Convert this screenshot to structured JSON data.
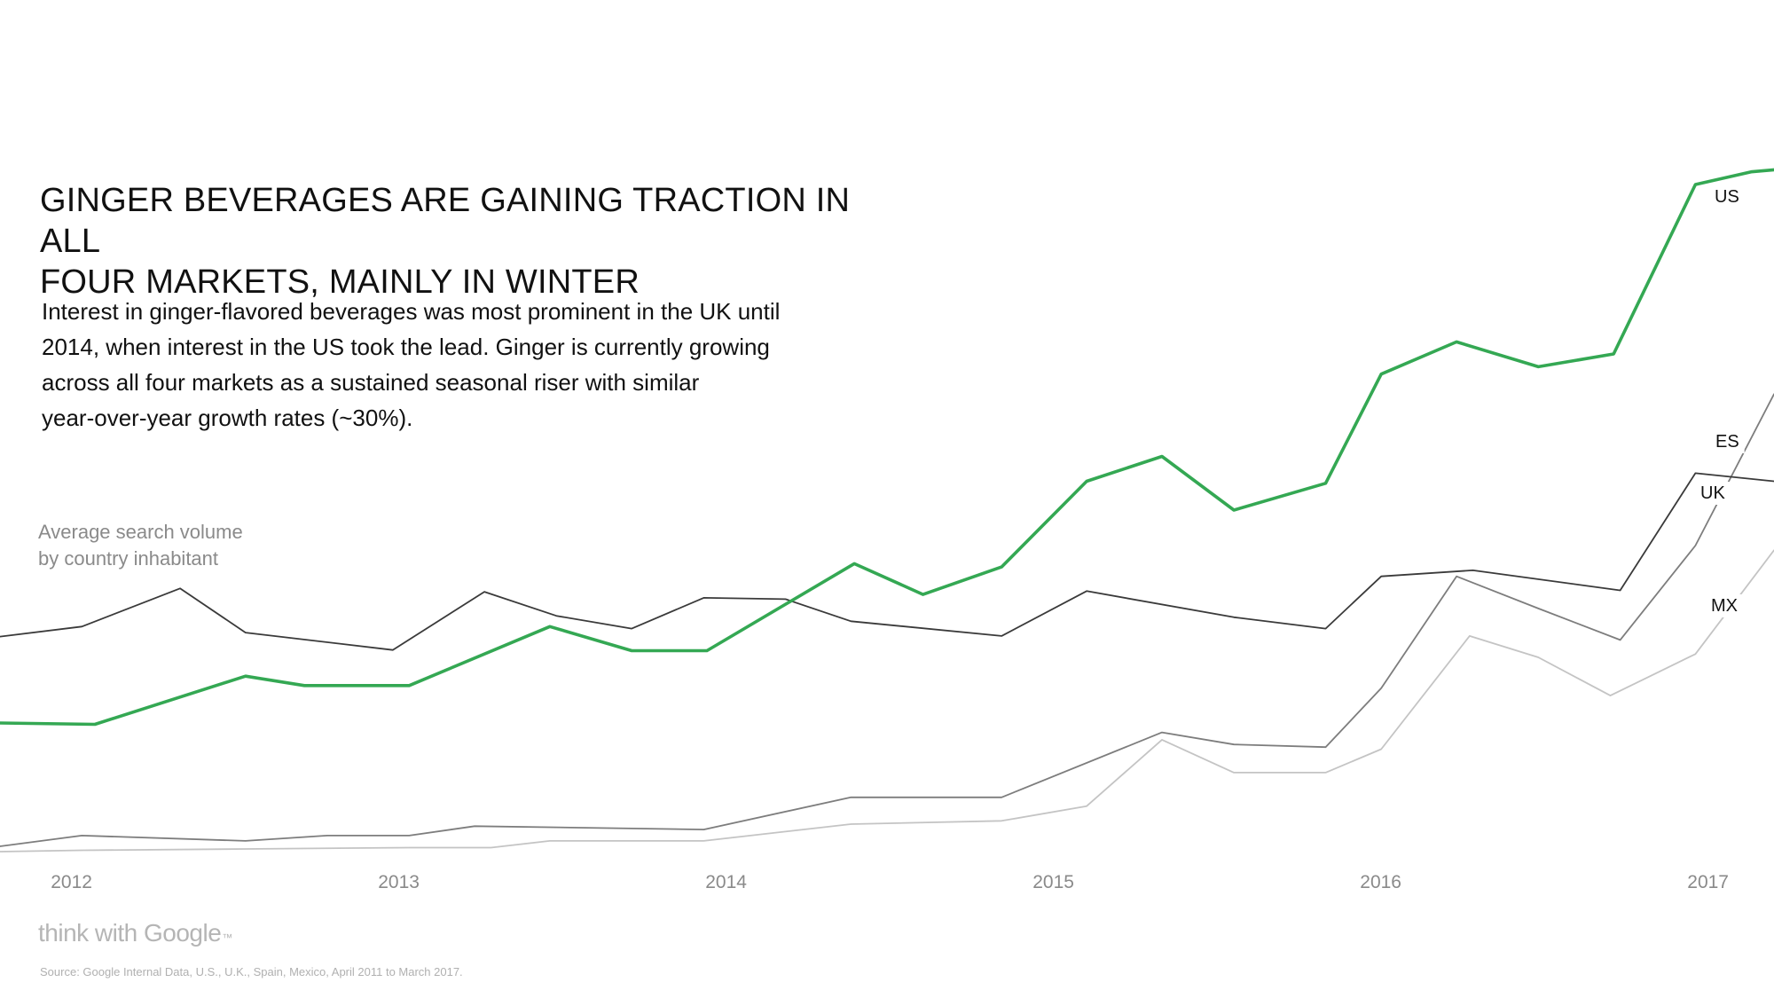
{
  "title": "GINGER BEVERAGES ARE GAINING TRACTION IN ALL\nFOUR MARKETS, MAINLY IN WINTER",
  "description": "Interest in ginger-flavored beverages was most prominent in the UK until\n2014, when interest in the US took the lead. Ginger is currently growing\nacross all four markets as a sustained seasonal riser with similar\nyear-over-year growth rates (~30%).",
  "yaxis_label": "Average search volume\nby country inhabitant",
  "brand": {
    "text": "think with Google",
    "mark": "™"
  },
  "source": "Source: Google Internal Data, U.S., U.K., Spain, Mexico, April 2011 to March 2017.",
  "colors": {
    "us": "#34a853",
    "uk": "#3a3a3a",
    "es": "#7d7d7d",
    "mx": "#c4c4c4",
    "tick": "#8a8a8a"
  },
  "chart_data": {
    "type": "line",
    "title": "GINGER BEVERAGES ARE GAINING TRACTION IN ALL FOUR MARKETS, MAINLY IN WINTER",
    "xlabel": "",
    "ylabel": "Average search volume by country inhabitant",
    "xlim": [
      2011.75,
      2017.17
    ],
    "ylim": [
      0,
      100
    ],
    "x_ticks": [
      2012,
      2013,
      2014,
      2015,
      2016,
      2017
    ],
    "x_tick_labels": [
      "2012",
      "2013",
      "2014",
      "2015",
      "2016",
      "2017"
    ],
    "grid": false,
    "legend": "inline labels at right end",
    "series": [
      {
        "name": "US",
        "color": "#34a853",
        "points": [
          [
            2011.75,
            19.2
          ],
          [
            2012.04,
            19.0
          ],
          [
            2012.5,
            26.2
          ],
          [
            2012.68,
            24.8
          ],
          [
            2013.0,
            24.8
          ],
          [
            2013.43,
            33.6
          ],
          [
            2013.68,
            30.0
          ],
          [
            2013.91,
            30.0
          ],
          [
            2014.36,
            43.0
          ],
          [
            2014.57,
            38.4
          ],
          [
            2014.81,
            42.5
          ],
          [
            2015.07,
            55.3
          ],
          [
            2015.3,
            59.0
          ],
          [
            2015.52,
            51.0
          ],
          [
            2015.8,
            55.0
          ],
          [
            2015.97,
            71.3
          ],
          [
            2016.2,
            76.1
          ],
          [
            2016.45,
            72.4
          ],
          [
            2016.68,
            74.3
          ],
          [
            2016.93,
            99.6
          ],
          [
            2017.1,
            101.5
          ],
          [
            2017.17,
            101.8
          ]
        ]
      },
      {
        "name": "ES",
        "color": "#7d7d7d",
        "points": [
          [
            2011.75,
            0.8
          ],
          [
            2012.0,
            2.4
          ],
          [
            2012.5,
            1.6
          ],
          [
            2012.75,
            2.4
          ],
          [
            2013.0,
            2.4
          ],
          [
            2013.2,
            3.8
          ],
          [
            2013.9,
            3.3
          ],
          [
            2014.35,
            8.1
          ],
          [
            2014.81,
            8.1
          ],
          [
            2015.3,
            17.8
          ],
          [
            2015.52,
            16.0
          ],
          [
            2015.8,
            15.6
          ],
          [
            2015.97,
            24.4
          ],
          [
            2016.2,
            41.1
          ],
          [
            2016.45,
            36.3
          ],
          [
            2016.7,
            31.6
          ],
          [
            2016.93,
            45.7
          ],
          [
            2017.17,
            68.3
          ]
        ]
      },
      {
        "name": "UK",
        "color": "#3a3a3a",
        "points": [
          [
            2011.75,
            32.1
          ],
          [
            2012.0,
            33.6
          ],
          [
            2012.3,
            39.3
          ],
          [
            2012.5,
            32.7
          ],
          [
            2012.95,
            30.1
          ],
          [
            2013.23,
            38.8
          ],
          [
            2013.45,
            35.2
          ],
          [
            2013.68,
            33.3
          ],
          [
            2013.9,
            37.9
          ],
          [
            2014.15,
            37.7
          ],
          [
            2014.35,
            34.4
          ],
          [
            2014.81,
            32.2
          ],
          [
            2015.07,
            38.9
          ],
          [
            2015.52,
            35.0
          ],
          [
            2015.8,
            33.3
          ],
          [
            2015.97,
            41.1
          ],
          [
            2016.25,
            42.0
          ],
          [
            2016.7,
            39.0
          ],
          [
            2016.93,
            56.5
          ],
          [
            2017.17,
            55.3
          ]
        ]
      },
      {
        "name": "MX",
        "color": "#c4c4c4",
        "points": [
          [
            2011.75,
            0.0
          ],
          [
            2012.0,
            0.2
          ],
          [
            2012.5,
            0.4
          ],
          [
            2013.0,
            0.6
          ],
          [
            2013.25,
            0.6
          ],
          [
            2013.43,
            1.6
          ],
          [
            2013.9,
            1.6
          ],
          [
            2014.35,
            4.1
          ],
          [
            2014.81,
            4.6
          ],
          [
            2015.07,
            6.8
          ],
          [
            2015.3,
            16.7
          ],
          [
            2015.52,
            11.8
          ],
          [
            2015.8,
            11.8
          ],
          [
            2015.97,
            15.3
          ],
          [
            2016.24,
            32.2
          ],
          [
            2016.45,
            29.0
          ],
          [
            2016.67,
            23.3
          ],
          [
            2016.93,
            29.5
          ],
          [
            2017.17,
            45.0
          ]
        ]
      }
    ]
  }
}
